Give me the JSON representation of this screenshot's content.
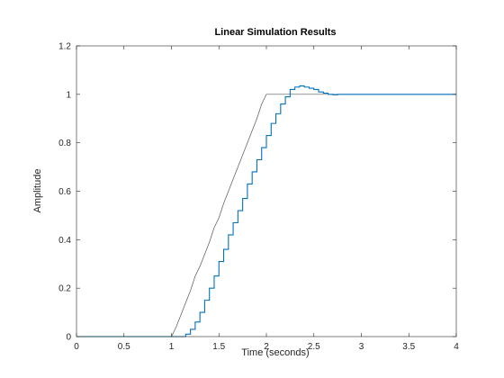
{
  "chart_data": {
    "type": "line",
    "title": "Linear Simulation Results",
    "xlabel": "Time (seconds)",
    "ylabel": "Amplitude",
    "xlim": [
      0,
      4
    ],
    "ylim": [
      0,
      1.2
    ],
    "xticks": [
      "0",
      "0.5",
      "1",
      "1.5",
      "2",
      "2.5",
      "3",
      "3.5",
      "4"
    ],
    "yticks": [
      "0",
      "0.2",
      "0.4",
      "0.6",
      "0.8",
      "1",
      "1.2"
    ],
    "grid": false,
    "series": [
      {
        "style": "line",
        "color": "#555555",
        "x": [
          0,
          1.0,
          1.05,
          1.1,
          1.15,
          1.2,
          1.25,
          1.3,
          1.35,
          1.4,
          1.45,
          1.5,
          1.55,
          1.6,
          1.65,
          1.7,
          1.75,
          1.8,
          1.85,
          1.9,
          1.95,
          2.0,
          4.0
        ],
        "y": [
          0,
          0,
          0.04,
          0.09,
          0.14,
          0.19,
          0.25,
          0.29,
          0.34,
          0.39,
          0.45,
          0.49,
          0.55,
          0.6,
          0.65,
          0.7,
          0.75,
          0.8,
          0.85,
          0.9,
          0.96,
          1.0,
          1.0
        ]
      },
      {
        "style": "step",
        "color": "#0072BD",
        "x": [
          0,
          1.15,
          1.2,
          1.25,
          1.3,
          1.35,
          1.4,
          1.45,
          1.5,
          1.55,
          1.6,
          1.65,
          1.7,
          1.75,
          1.8,
          1.85,
          1.9,
          1.95,
          2.0,
          2.05,
          2.1,
          2.15,
          2.2,
          2.25,
          2.3,
          2.35,
          2.4,
          2.45,
          2.5,
          2.55,
          2.6,
          2.65,
          2.7,
          2.75,
          3.2,
          4.0
        ],
        "y": [
          0,
          0.01,
          0.03,
          0.06,
          0.1,
          0.15,
          0.2,
          0.25,
          0.31,
          0.36,
          0.42,
          0.47,
          0.52,
          0.57,
          0.63,
          0.68,
          0.73,
          0.78,
          0.83,
          0.88,
          0.92,
          0.96,
          0.99,
          1.02,
          1.03,
          1.035,
          1.03,
          1.025,
          1.02,
          1.01,
          1.005,
          1.0,
          0.998,
          1.0,
          1.0,
          1.0
        ]
      }
    ]
  }
}
